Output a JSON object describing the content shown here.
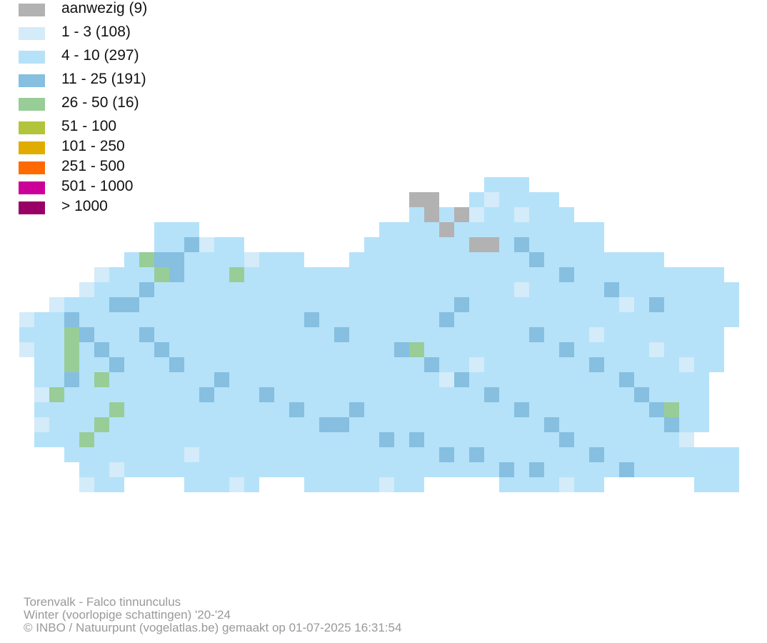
{
  "legend": {
    "items": [
      {
        "label": "aanwezig (9)",
        "color": "#b2b2b2"
      },
      {
        "label": "1 - 3 (108)",
        "color": "#d4ebf9"
      },
      {
        "label": "4 - 10 (297)",
        "color": "#b5e2f9"
      },
      {
        "label": "11 - 25 (191)",
        "color": "#86bfe0"
      },
      {
        "label": "26 - 50 (16)",
        "color": "#98cd98"
      },
      {
        "label": "51 - 100",
        "color": "#b2c43c"
      },
      {
        "label": "101 - 250",
        "color": "#e1ac00"
      },
      {
        "label": "251 - 500",
        "color": "#ff6a00"
      },
      {
        "label": "501 - 1000",
        "color": "#cc0099"
      },
      {
        "label": "> 1000",
        "color": "#990066"
      }
    ]
  },
  "map_data": {
    "species_mark": "cell"
  },
  "credits": {
    "species": "Torenvalk - Falco tinnunculus",
    "period": "Winter (voorlopige schattingen) '20-'24",
    "source": "© INBO / Natuurpunt (vogelatlas.be) gemaakt op 01-07-2025 16:31:54"
  }
}
